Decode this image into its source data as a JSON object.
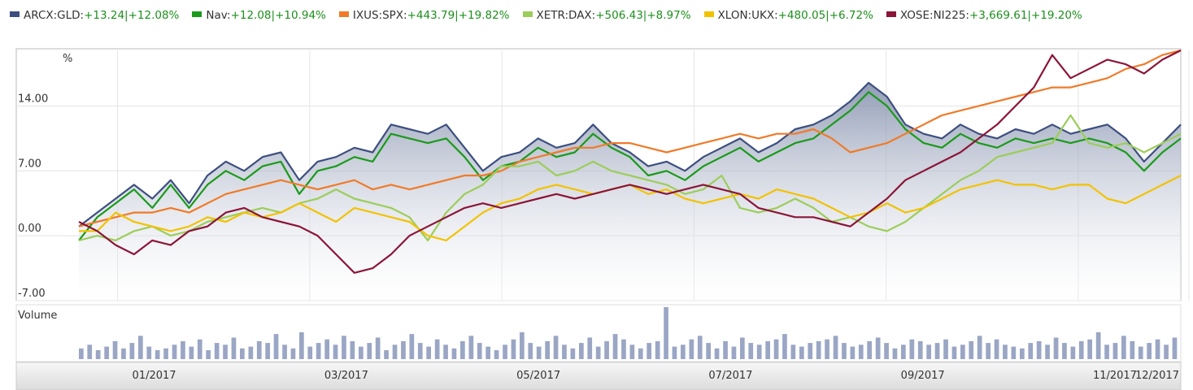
{
  "legend": [
    {
      "name": "ARCX:GLD",
      "change": "+13.24|+12.08%",
      "color": "#3d4f80"
    },
    {
      "name": "Nav",
      "change": "+12.08|+10.94%",
      "color": "#1a9a1a"
    },
    {
      "name": "IXUS:SPX",
      "change": "+443.79|+19.82%",
      "color": "#f07a28"
    },
    {
      "name": "XETR:DAX",
      "change": "+506.43|+8.97%",
      "color": "#9ccd5a"
    },
    {
      "name": "XLON:UKX",
      "change": "+480.05|+6.72%",
      "color": "#f2c200"
    },
    {
      "name": "XOSE:NI225",
      "change": "+3,669.61|+19.20%",
      "color": "#8b1538"
    }
  ],
  "chart_data": {
    "type": "line",
    "ylabel": "%",
    "ylim": [
      -7,
      20
    ],
    "y_ticks": [
      "14.00",
      "7.00",
      "0.00",
      "-7.00"
    ],
    "y_tick_values": [
      14,
      7,
      0,
      -7
    ],
    "x_ticks": [
      "01/2017",
      "03/2017",
      "05/2017",
      "07/2017",
      "09/2017",
      "11/2017",
      "12/2017"
    ],
    "x_tick_positions": [
      0.08,
      0.245,
      0.41,
      0.575,
      0.74,
      0.905,
      1.0
    ],
    "volume_label": "Volume",
    "series": [
      {
        "name": "ARCX:GLD",
        "color": "#3d4f80",
        "filled": true,
        "values": [
          1.0,
          2.5,
          4.0,
          5.5,
          4.0,
          6.0,
          3.5,
          6.5,
          8.0,
          7.0,
          8.5,
          9.0,
          6.0,
          8.0,
          8.5,
          9.5,
          9.0,
          12.0,
          11.5,
          11.0,
          12.0,
          9.5,
          7.0,
          8.5,
          9.0,
          10.5,
          9.5,
          10.0,
          12.0,
          10.0,
          9.0,
          7.5,
          8.0,
          7.0,
          8.5,
          9.5,
          10.5,
          9.0,
          10.0,
          11.5,
          12.0,
          13.0,
          14.5,
          16.5,
          15.0,
          12.0,
          11.0,
          10.5,
          12.0,
          11.0,
          10.5,
          11.5,
          11.0,
          12.0,
          11.0,
          11.5,
          12.0,
          10.5,
          8.0,
          10.0,
          12.0
        ]
      },
      {
        "name": "Nav",
        "color": "#1a9a1a",
        "filled": false,
        "values": [
          -0.5,
          2.0,
          3.5,
          5.0,
          3.0,
          5.5,
          3.0,
          5.5,
          7.0,
          6.0,
          7.5,
          8.0,
          4.5,
          7.0,
          7.5,
          8.5,
          8.0,
          11.0,
          10.5,
          10.0,
          10.5,
          8.5,
          6.0,
          7.5,
          8.0,
          9.5,
          8.5,
          9.0,
          11.0,
          9.5,
          8.5,
          6.5,
          7.0,
          6.0,
          7.5,
          8.5,
          9.5,
          8.0,
          9.0,
          10.0,
          10.5,
          12.0,
          13.5,
          15.5,
          14.0,
          11.5,
          10.0,
          9.5,
          11.0,
          10.0,
          9.5,
          10.5,
          10.0,
          10.5,
          10.0,
          10.5,
          10.0,
          9.0,
          7.0,
          9.0,
          10.5
        ]
      },
      {
        "name": "IXUS:SPX",
        "color": "#f07a28",
        "filled": false,
        "values": [
          1.0,
          1.5,
          2.0,
          2.5,
          2.5,
          3.0,
          2.5,
          3.5,
          4.5,
          5.0,
          5.5,
          6.0,
          5.5,
          5.0,
          5.5,
          6.0,
          5.0,
          5.5,
          5.0,
          5.5,
          6.0,
          6.5,
          6.5,
          7.0,
          8.0,
          8.5,
          9.0,
          9.5,
          9.5,
          10.0,
          10.0,
          9.5,
          9.0,
          9.5,
          10.0,
          10.5,
          11.0,
          10.5,
          11.0,
          11.0,
          11.5,
          10.5,
          9.0,
          9.5,
          10.0,
          11.0,
          12.0,
          13.0,
          13.5,
          14.0,
          14.5,
          15.0,
          15.5,
          16.0,
          16.0,
          16.5,
          17.0,
          18.0,
          18.5,
          19.5,
          20.0
        ]
      },
      {
        "name": "XETR:DAX",
        "color": "#9ccd5a",
        "filled": false,
        "values": [
          -0.5,
          0.0,
          -0.5,
          0.5,
          1.0,
          0.0,
          0.5,
          1.5,
          2.0,
          2.5,
          3.0,
          2.5,
          3.5,
          4.0,
          5.0,
          4.0,
          3.5,
          3.0,
          2.0,
          -0.5,
          2.5,
          4.5,
          5.5,
          7.5,
          7.5,
          8.0,
          6.5,
          7.0,
          8.0,
          7.0,
          6.5,
          6.0,
          5.5,
          4.5,
          5.0,
          6.5,
          3.0,
          2.5,
          3.0,
          4.0,
          3.0,
          1.5,
          2.0,
          1.0,
          0.5,
          1.5,
          3.0,
          4.5,
          6.0,
          7.0,
          8.5,
          9.0,
          9.5,
          10.0,
          13.0,
          10.0,
          9.5,
          10.0,
          9.0,
          10.0,
          11.0
        ]
      },
      {
        "name": "XLON:UKX",
        "color": "#f2c200",
        "filled": false,
        "values": [
          0.5,
          0.5,
          2.5,
          1.5,
          1.0,
          0.5,
          1.0,
          2.0,
          1.5,
          2.5,
          2.0,
          2.5,
          3.5,
          2.5,
          1.5,
          3.0,
          2.5,
          2.0,
          1.5,
          0.0,
          -0.5,
          1.0,
          2.5,
          3.5,
          4.0,
          5.0,
          5.5,
          5.0,
          4.5,
          5.0,
          5.5,
          4.5,
          5.0,
          4.0,
          3.5,
          4.0,
          4.5,
          4.0,
          5.0,
          4.5,
          4.0,
          3.0,
          2.0,
          2.5,
          3.5,
          2.5,
          3.0,
          4.0,
          5.0,
          5.5,
          6.0,
          5.5,
          5.5,
          5.0,
          5.5,
          5.5,
          4.0,
          3.5,
          4.5,
          5.5,
          6.5
        ]
      },
      {
        "name": "XOSE:NI225",
        "color": "#8b1538",
        "filled": false,
        "values": [
          1.5,
          0.5,
          -1.0,
          -2.0,
          -0.5,
          -1.0,
          0.5,
          1.0,
          2.5,
          3.0,
          2.0,
          1.5,
          1.0,
          0.0,
          -2.0,
          -4.0,
          -3.5,
          -2.0,
          0.0,
          1.0,
          2.0,
          3.0,
          3.5,
          3.0,
          3.5,
          4.0,
          4.5,
          4.0,
          4.5,
          5.0,
          5.5,
          5.0,
          4.5,
          5.0,
          5.5,
          5.0,
          4.5,
          3.0,
          2.5,
          2.0,
          2.0,
          1.5,
          1.0,
          2.5,
          4.0,
          6.0,
          7.0,
          8.0,
          9.0,
          10.5,
          12.0,
          14.0,
          16.0,
          19.5,
          17.0,
          18.0,
          19.0,
          18.5,
          17.5,
          19.0,
          20.0
        ]
      }
    ],
    "volume": [
      12,
      16,
      10,
      14,
      20,
      12,
      18,
      26,
      14,
      10,
      12,
      16,
      20,
      14,
      22,
      10,
      18,
      16,
      24,
      12,
      14,
      20,
      18,
      28,
      16,
      12,
      30,
      14,
      18,
      22,
      16,
      26,
      20,
      14,
      18,
      24,
      10,
      16,
      20,
      28,
      18,
      14,
      22,
      16,
      12,
      20,
      26,
      18,
      14,
      10,
      16,
      22,
      30,
      18,
      14,
      20,
      26,
      16,
      12,
      18,
      24,
      14,
      20,
      28,
      22,
      16,
      12,
      18,
      20,
      58,
      14,
      16,
      22,
      26,
      18,
      12,
      20,
      14,
      24,
      18,
      16,
      20,
      22,
      28,
      16,
      14,
      18,
      20,
      22,
      26,
      18,
      14,
      16,
      20,
      24,
      18,
      12,
      16,
      22,
      20,
      16,
      18,
      22,
      14,
      16,
      20,
      26,
      18,
      22,
      16,
      14,
      12,
      18,
      20,
      16,
      24,
      18,
      14,
      20,
      22,
      30,
      16,
      18,
      26,
      20,
      14,
      18,
      22,
      16,
      24
    ]
  }
}
